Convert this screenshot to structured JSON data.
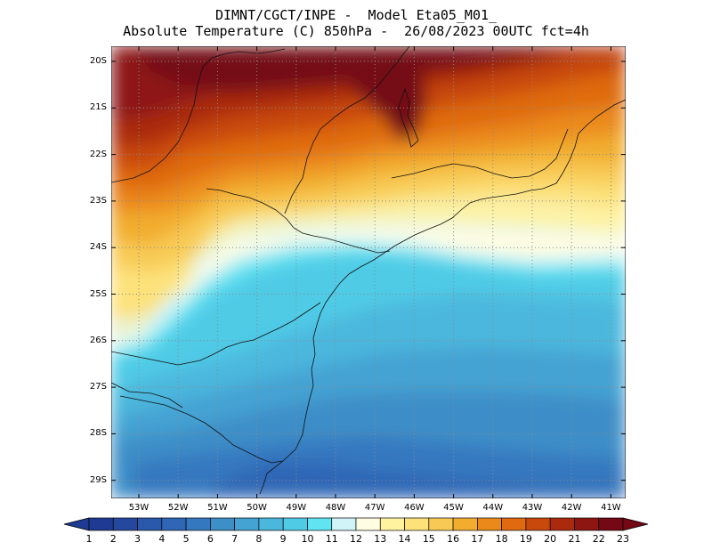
{
  "header": {
    "title_line1": "DIMNT/CGCT/INPE -  Model Eta05_M01_",
    "title_line2": "Absolute Temperature (C) 850hPa -  26/08/2023 00UTC fct=4h"
  },
  "map": {
    "variable": "Absolute Temperature (C)",
    "level": "850hPa",
    "lat_labels": [
      "20S",
      "21S",
      "22S",
      "23S",
      "24S",
      "25S",
      "26S",
      "27S",
      "28S",
      "29S"
    ],
    "lon_labels": [
      "53W",
      "52W",
      "51W",
      "50W",
      "49W",
      "48W",
      "47W",
      "46W",
      "45W",
      "44W",
      "43W",
      "42W",
      "41W"
    ],
    "grid": "dotted",
    "coastline_color": "#000000"
  },
  "colorbar": {
    "labels": [
      "1",
      "2",
      "3",
      "4",
      "5",
      "6",
      "7",
      "8",
      "9",
      "10",
      "11",
      "12",
      "13",
      "14",
      "15",
      "16",
      "17",
      "18",
      "19",
      "20",
      "21",
      "22",
      "23"
    ],
    "colors": [
      "#1f3a93",
      "#24489e",
      "#2a58ab",
      "#2f66b5",
      "#3478bf",
      "#3e8ec8",
      "#45a3d3",
      "#4cb7dd",
      "#50cbe6",
      "#60e4f2",
      "#d0f4f8",
      "#fffde2",
      "#fff3a0",
      "#fde27a",
      "#f8ca55",
      "#f2ad2f",
      "#eb8a1a",
      "#df6a10",
      "#c9480b",
      "#ab2a0d",
      "#8e1612",
      "#740815"
    ]
  }
}
